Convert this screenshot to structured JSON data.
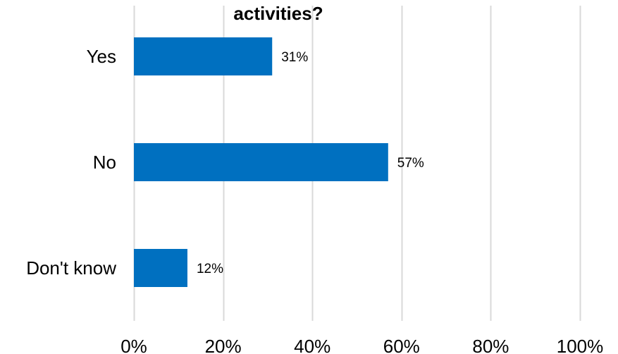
{
  "chart_data": {
    "type": "bar",
    "orientation": "horizontal",
    "title": "activities?",
    "categories": [
      "Yes",
      "No",
      "Don't know"
    ],
    "values": [
      31,
      57,
      12
    ],
    "data_labels": [
      "31%",
      "57%",
      "12%"
    ],
    "x_ticks": [
      "0%",
      "20%",
      "40%",
      "60%",
      "80%",
      "100%"
    ],
    "xlim": [
      0,
      100
    ],
    "xlabel": "",
    "ylabel": "",
    "grid": true,
    "legend": "none",
    "colors": {
      "bar": "#0070C0",
      "grid": "#D9D9D9"
    }
  }
}
